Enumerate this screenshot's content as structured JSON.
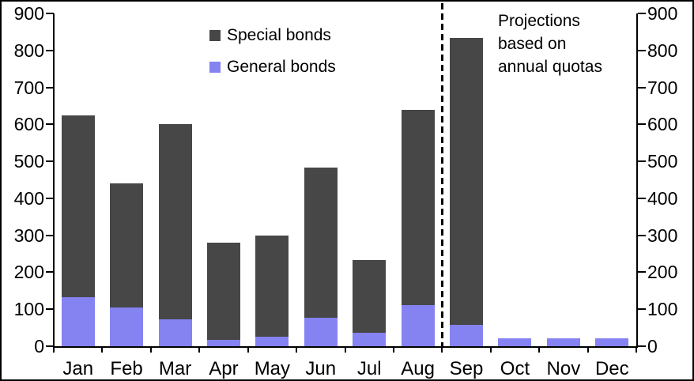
{
  "chart_data": {
    "type": "bar",
    "stacked": true,
    "title": "",
    "categories": [
      "Jan",
      "Feb",
      "Mar",
      "Apr",
      "May",
      "Jun",
      "Jul",
      "Aug",
      "Sep",
      "Oct",
      "Nov",
      "Dec"
    ],
    "series": [
      {
        "name": "Special bonds",
        "color": "#474747",
        "values": [
          492,
          335,
          528,
          263,
          275,
          407,
          196,
          529,
          776,
          0,
          0,
          0
        ]
      },
      {
        "name": "General bonds",
        "color": "#8583F2",
        "values": [
          133,
          105,
          72,
          17,
          25,
          76,
          37,
          111,
          58,
          22,
          22,
          22
        ]
      }
    ],
    "stack_order_bottom_to_top": [
      "General bonds",
      "Special bonds"
    ],
    "totals": [
      625,
      440,
      600,
      280,
      300,
      483,
      233,
      640,
      834,
      22,
      22,
      22
    ],
    "xlabel": "",
    "ylabel": "",
    "ylim": [
      0,
      900
    ],
    "ytick_labels": [
      "0",
      "100",
      "200",
      "300",
      "400",
      "500",
      "600",
      "700",
      "800",
      "900"
    ],
    "dual_y_axis": true,
    "grid": false,
    "legend_position": "top-center-inside",
    "divider_after_index": 8,
    "annotation_lines": [
      "Projections",
      "based on",
      "annual quotas"
    ]
  }
}
